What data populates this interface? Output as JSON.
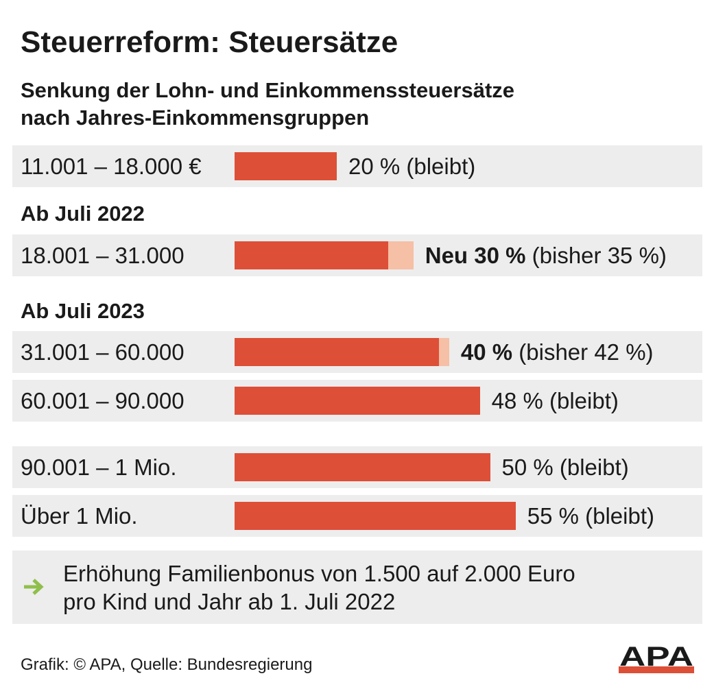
{
  "title": "Steuerreform: Steuersätze",
  "subtitle_line1": "Senkung der Lohn- und Einkommenssteuersätze",
  "subtitle_line2": "nach Jahres-Einkommensgruppen",
  "sections": [
    "Ab Juli 2022",
    "Ab Juli 2023"
  ],
  "rows": [
    {
      "label": "11.001 – 18.000 €",
      "strong": "",
      "rest": "20 % (bleibt)"
    },
    {
      "label": "18.001 – 31.000",
      "strong": "Neu 30 %",
      "rest": " (bisher 35 %)"
    },
    {
      "label": "31.001 – 60.000",
      "strong": "40 %",
      "rest": " (bisher 42 %)"
    },
    {
      "label": "60.001 – 90.000",
      "strong": "",
      "rest": "48 % (bleibt)"
    },
    {
      "label": "90.001 – 1 Mio.",
      "strong": "",
      "rest": "50 % (bleibt)"
    },
    {
      "label": "Über 1 Mio.",
      "strong": "",
      "rest": "55 % (bleibt)"
    }
  ],
  "note_line1": "Erhöhung Familienbonus von 1.500 auf 2.000 Euro",
  "note_line2": "pro Kind und Jahr ab 1. Juli 2022",
  "footer": "Grafik: © APA, Quelle: Bundesregierung",
  "logo_text": "APA",
  "colors": {
    "bar": "#dd4f37",
    "bar_previous": "#f5c0a6",
    "row_background": "#ededed",
    "arrow": "#8fbf4a"
  },
  "icons": {
    "note": "arrow-right-icon"
  },
  "chart_data": {
    "type": "bar",
    "orientation": "horizontal",
    "categories": [
      "11.001 – 18.000 €",
      "18.001 – 31.000",
      "31.001 – 60.000",
      "60.001 – 90.000",
      "90.001 – 1 Mio.",
      "Über 1 Mio."
    ],
    "series": [
      {
        "name": "Neu",
        "values": [
          20,
          30,
          40,
          48,
          50,
          55
        ]
      },
      {
        "name": "bisher",
        "values": [
          20,
          35,
          42,
          48,
          50,
          55
        ]
      }
    ],
    "unit": "%",
    "xlim": [
      0,
      55
    ],
    "title": "Steuerreform: Steuersätze",
    "subtitle": "Senkung der Lohn- und Einkommenssteuersätze nach Jahres-Einkommensgruppen",
    "grid": false,
    "legend": "none"
  }
}
